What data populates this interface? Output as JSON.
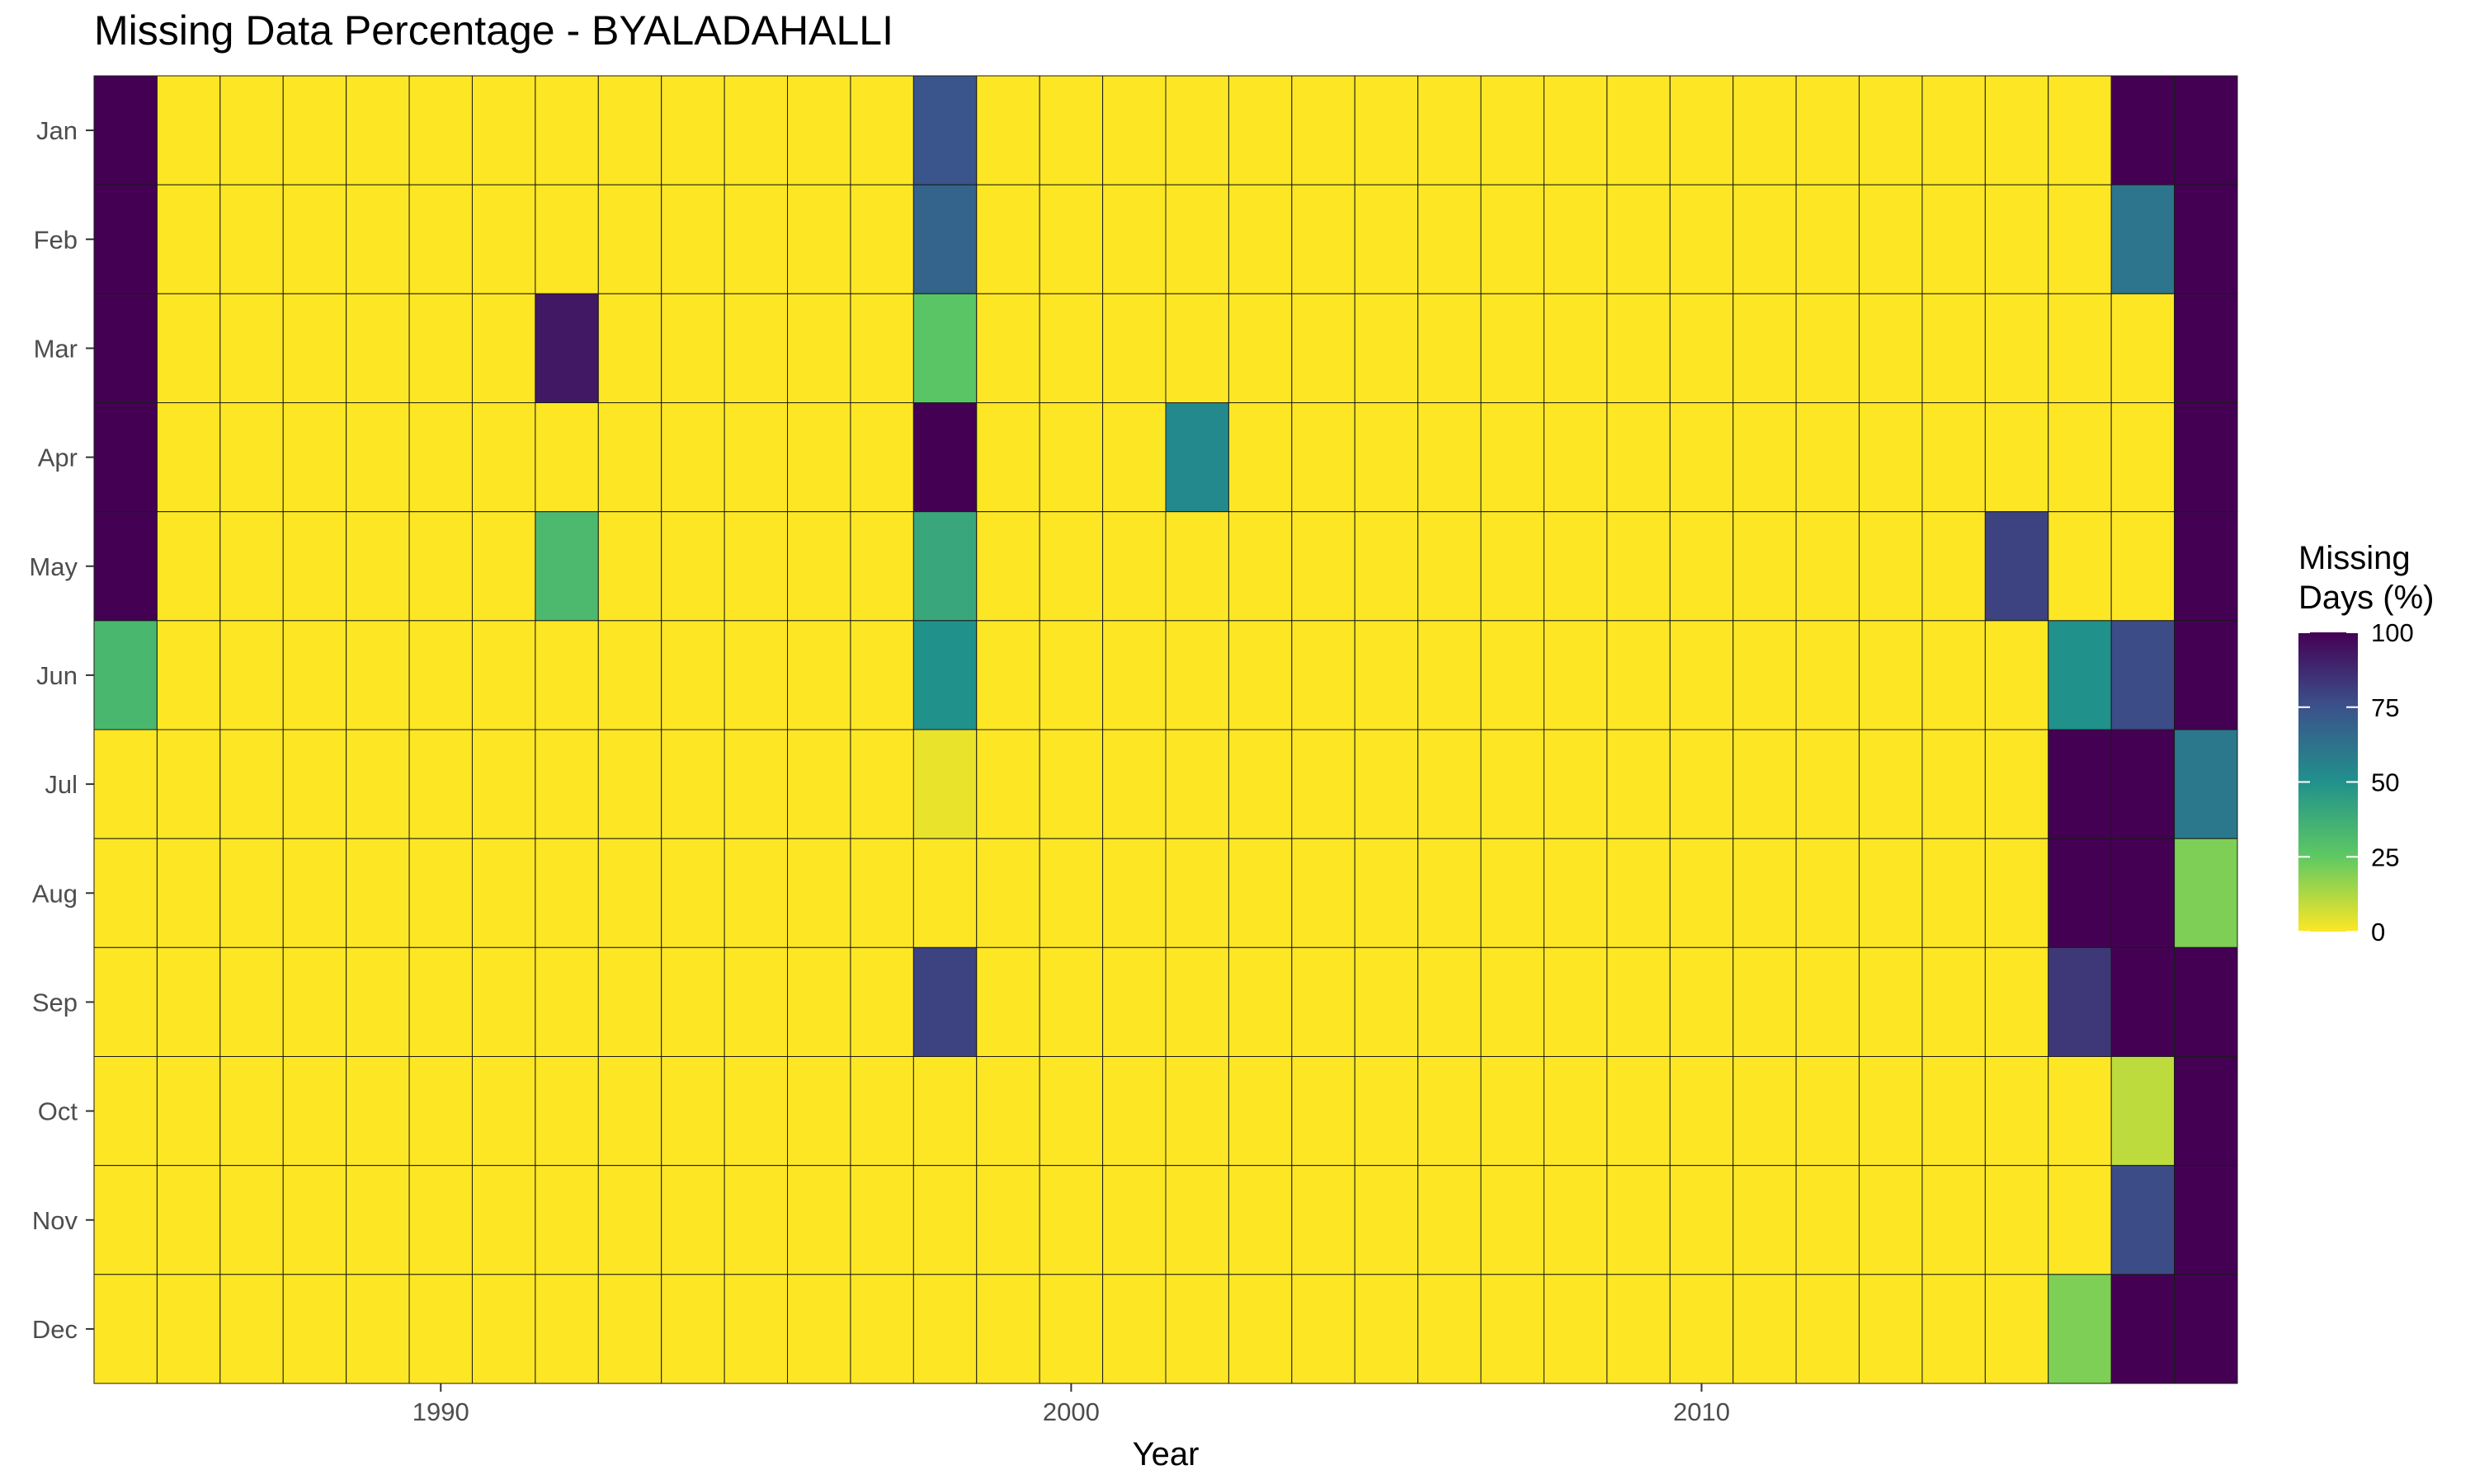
{
  "chart_data": {
    "type": "heatmap",
    "title": "Missing Data Percentage - BYALADAHALLI",
    "xlabel": "Year",
    "ylabel": "",
    "x": [
      1985,
      1986,
      1987,
      1988,
      1989,
      1990,
      1991,
      1992,
      1993,
      1994,
      1995,
      1996,
      1997,
      1998,
      1999,
      2000,
      2001,
      2002,
      2003,
      2004,
      2005,
      2006,
      2007,
      2008,
      2009,
      2010,
      2011,
      2012,
      2013,
      2014,
      2015,
      2016,
      2017,
      2018
    ],
    "x_ticks": [
      1990,
      2000,
      2010
    ],
    "y": [
      "Jan",
      "Feb",
      "Mar",
      "Apr",
      "May",
      "Jun",
      "Jul",
      "Aug",
      "Sep",
      "Oct",
      "Nov",
      "Dec"
    ],
    "colorbar": {
      "title": "Missing Days (%)",
      "title_lines": [
        "Missing",
        "Days (%)"
      ],
      "range": [
        0,
        100
      ],
      "ticks": [
        0,
        25,
        50,
        75,
        100
      ],
      "palette": "viridis-reversed",
      "colors": [
        "#fde725",
        "#5ec962",
        "#21918c",
        "#3b528b",
        "#440154"
      ]
    },
    "default_value": 0,
    "cells": [
      {
        "year": 1985,
        "month": "Jan",
        "value": 100
      },
      {
        "year": 1985,
        "month": "Feb",
        "value": 100
      },
      {
        "year": 1985,
        "month": "Mar",
        "value": 100
      },
      {
        "year": 1985,
        "month": "Apr",
        "value": 100
      },
      {
        "year": 1985,
        "month": "May",
        "value": 100
      },
      {
        "year": 1985,
        "month": "Jun",
        "value": 33
      },
      {
        "year": 1992,
        "month": "Mar",
        "value": 93
      },
      {
        "year": 1992,
        "month": "May",
        "value": 32
      },
      {
        "year": 1998,
        "month": "Jan",
        "value": 74
      },
      {
        "year": 1998,
        "month": "Feb",
        "value": 68
      },
      {
        "year": 1998,
        "month": "Mar",
        "value": 27
      },
      {
        "year": 1998,
        "month": "Apr",
        "value": 100
      },
      {
        "year": 1998,
        "month": "May",
        "value": 40
      },
      {
        "year": 1998,
        "month": "Jun",
        "value": 50
      },
      {
        "year": 1998,
        "month": "Jul",
        "value": 3
      },
      {
        "year": 1998,
        "month": "Sep",
        "value": 80
      },
      {
        "year": 2002,
        "month": "Apr",
        "value": 53
      },
      {
        "year": 2015,
        "month": "May",
        "value": 80
      },
      {
        "year": 2016,
        "month": "Jun",
        "value": 50
      },
      {
        "year": 2016,
        "month": "Jul",
        "value": 100
      },
      {
        "year": 2016,
        "month": "Aug",
        "value": 100
      },
      {
        "year": 2016,
        "month": "Sep",
        "value": 83
      },
      {
        "year": 2016,
        "month": "Dec",
        "value": 20
      },
      {
        "year": 2017,
        "month": "Jan",
        "value": 100
      },
      {
        "year": 2017,
        "month": "Feb",
        "value": 61
      },
      {
        "year": 2017,
        "month": "Jun",
        "value": 77
      },
      {
        "year": 2017,
        "month": "Jul",
        "value": 100
      },
      {
        "year": 2017,
        "month": "Aug",
        "value": 100
      },
      {
        "year": 2017,
        "month": "Sep",
        "value": 100
      },
      {
        "year": 2017,
        "month": "Oct",
        "value": 10
      },
      {
        "year": 2017,
        "month": "Nov",
        "value": 77
      },
      {
        "year": 2017,
        "month": "Dec",
        "value": 100
      },
      {
        "year": 2018,
        "month": "Jan",
        "value": 100
      },
      {
        "year": 2018,
        "month": "Feb",
        "value": 100
      },
      {
        "year": 2018,
        "month": "Mar",
        "value": 100
      },
      {
        "year": 2018,
        "month": "Apr",
        "value": 100
      },
      {
        "year": 2018,
        "month": "May",
        "value": 100
      },
      {
        "year": 2018,
        "month": "Jun",
        "value": 100
      },
      {
        "year": 2018,
        "month": "Jul",
        "value": 60
      },
      {
        "year": 2018,
        "month": "Aug",
        "value": 20
      },
      {
        "year": 2018,
        "month": "Sep",
        "value": 100
      },
      {
        "year": 2018,
        "month": "Oct",
        "value": 100
      },
      {
        "year": 2018,
        "month": "Nov",
        "value": 100
      },
      {
        "year": 2018,
        "month": "Dec",
        "value": 100
      }
    ]
  }
}
